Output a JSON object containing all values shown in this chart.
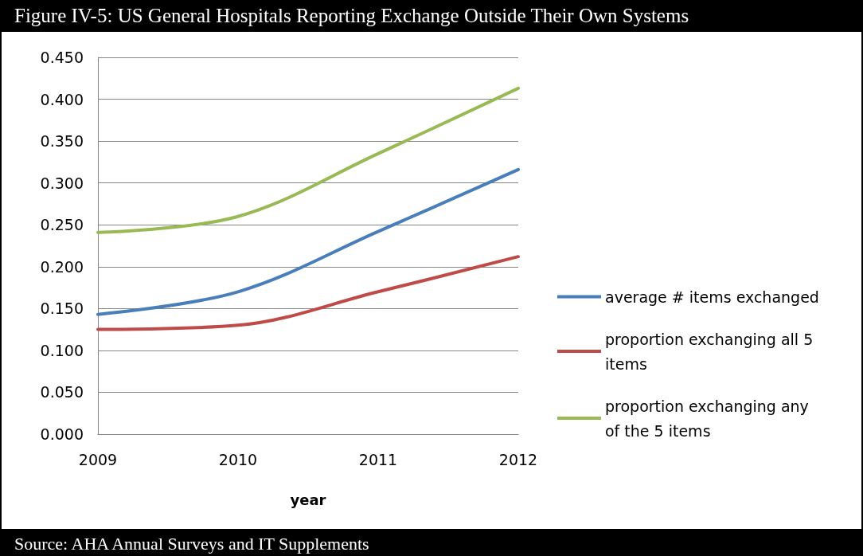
{
  "chart_data": {
    "type": "line",
    "title": "Figure IV-5: US General Hospitals Reporting Exchange Outside Their Own Systems",
    "xlabel": "year",
    "categories": [
      "2009",
      "2010",
      "2011",
      "2012"
    ],
    "series": [
      {
        "name": "average # items exchanged",
        "color": "#4a7ebb",
        "values": [
          0.143,
          0.17,
          0.242,
          0.316
        ]
      },
      {
        "name": "proportion exchanging all 5 items",
        "color": "#be4b48",
        "values": [
          0.125,
          0.13,
          0.17,
          0.212
        ]
      },
      {
        "name": "proportion exchanging any of the 5 items",
        "color": "#98b954",
        "values": [
          0.241,
          0.26,
          0.335,
          0.413
        ]
      }
    ],
    "ylim": [
      0,
      0.45
    ],
    "yticks": [
      {
        "value": 0,
        "label": "0.000"
      },
      {
        "value": 0.05,
        "label": "0.050"
      },
      {
        "value": 0.1,
        "label": "0.100"
      },
      {
        "value": 0.15,
        "label": "0.150"
      },
      {
        "value": 0.2,
        "label": "0.200"
      },
      {
        "value": 0.25,
        "label": "0.250"
      },
      {
        "value": 0.3,
        "label": "0.300"
      },
      {
        "value": 0.35,
        "label": "0.350"
      },
      {
        "value": 0.4,
        "label": "0.400"
      },
      {
        "value": 0.45,
        "label": "0.450"
      }
    ],
    "grid": "y",
    "legend": "right",
    "marker": "none",
    "line_style": "solid",
    "annotations": [
      "Source: AHA Annual Surveys and IT Supplements"
    ]
  }
}
